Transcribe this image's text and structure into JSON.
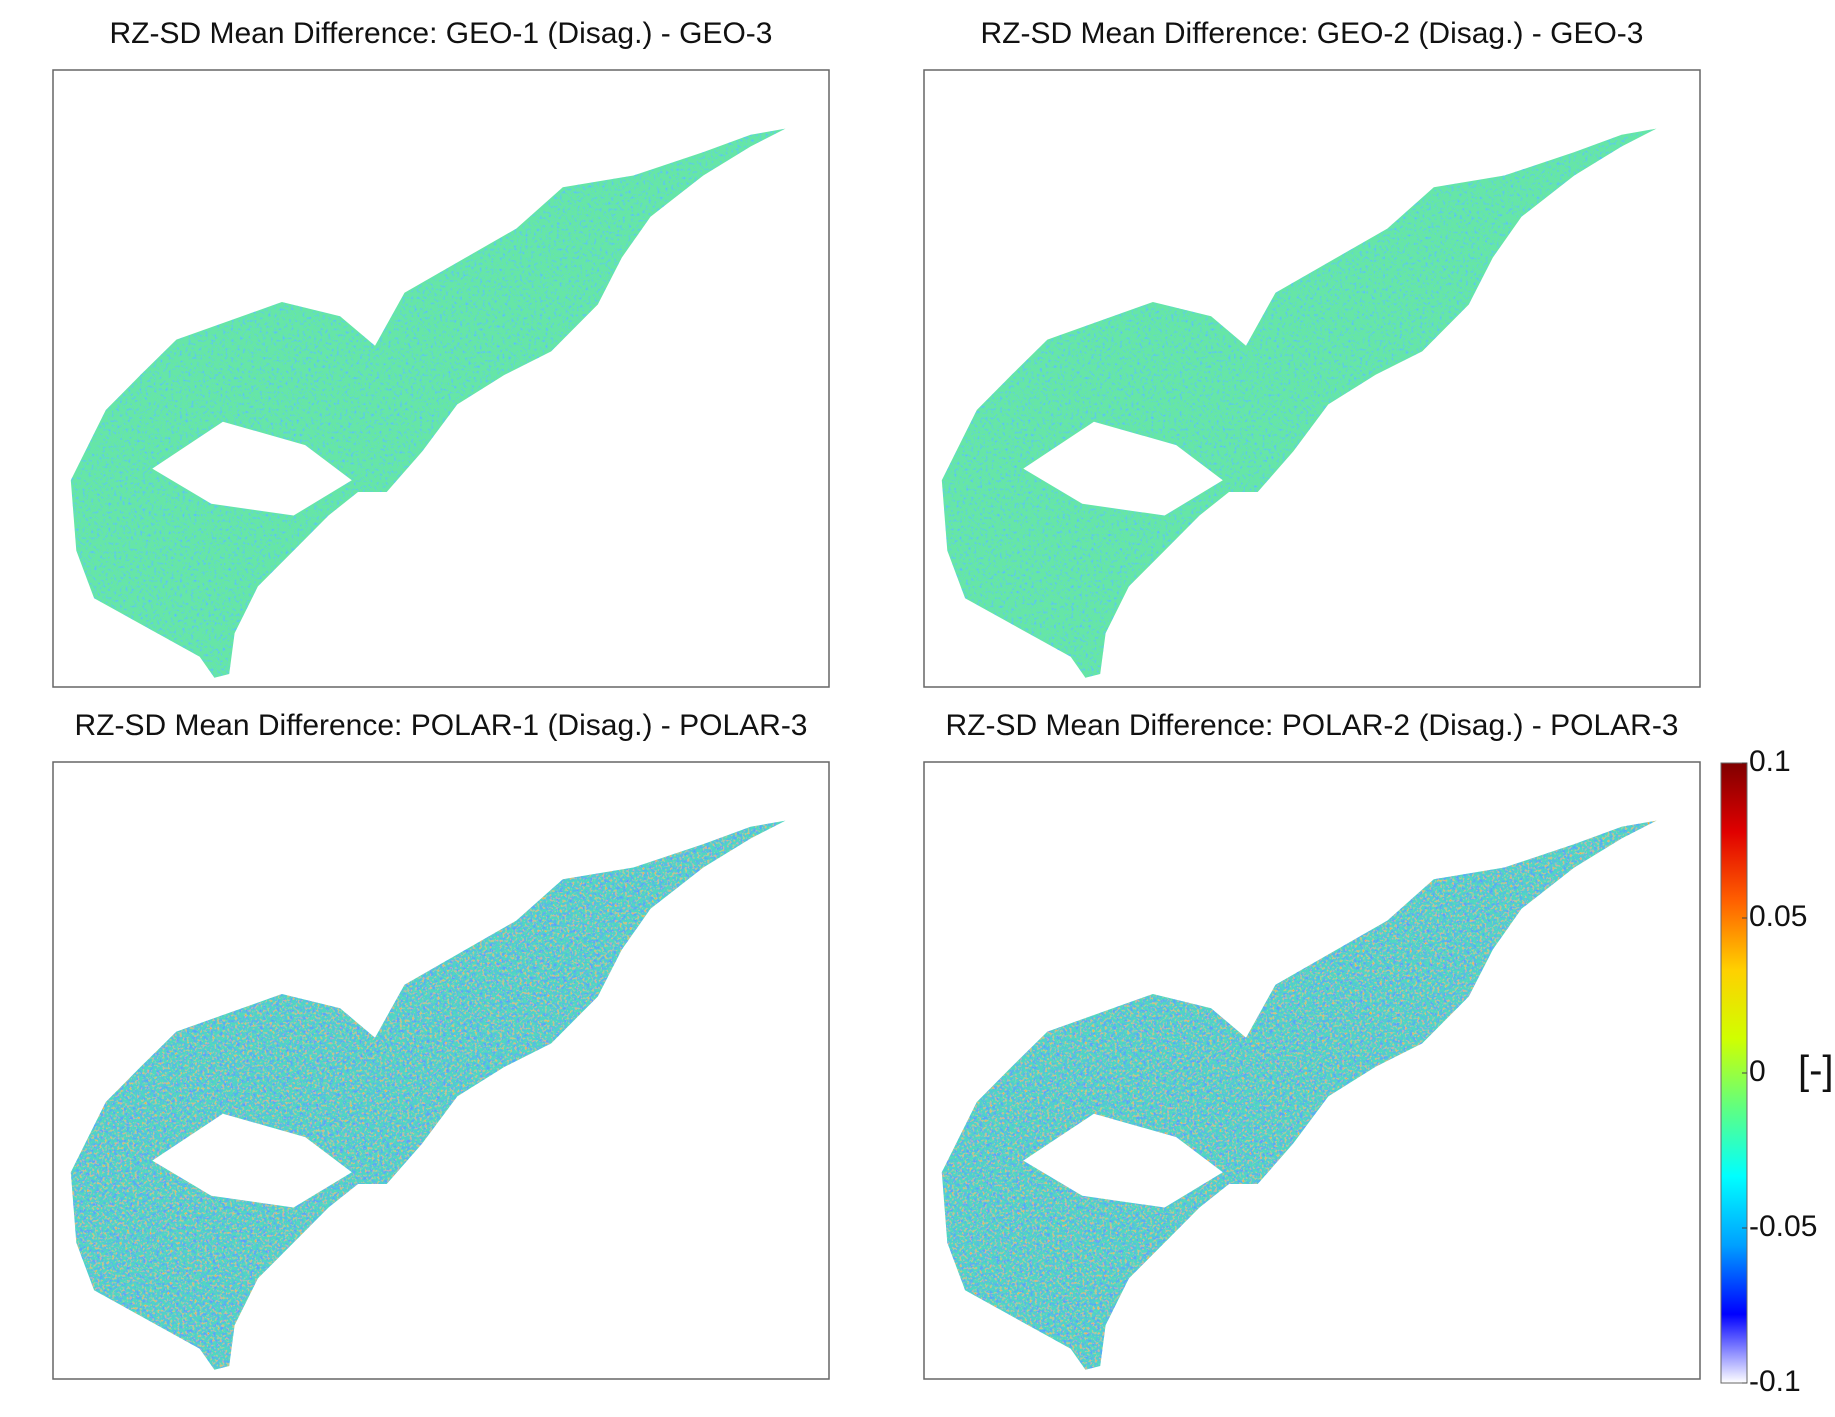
{
  "panels": [
    {
      "title": "RZ-SD Mean Difference: GEO-1 (Disag.) - GEO-3"
    },
    {
      "title": "RZ-SD Mean Difference: GEO-2 (Disag.) - GEO-3"
    },
    {
      "title": "RZ-SD Mean Difference: POLAR-1 (Disag.) - POLAR-3"
    },
    {
      "title": "RZ-SD Mean Difference: POLAR-2 (Disag.) - POLAR-3"
    }
  ],
  "colorbar": {
    "lim": [
      -0.1,
      0.1
    ],
    "ticks": [
      0.1,
      0.05,
      0,
      -0.05,
      -0.1
    ],
    "label": "[-]",
    "colormap": [
      "#ffffff",
      "#0000ff",
      "#00a0ff",
      "#00ffff",
      "#60ff80",
      "#d0ff00",
      "#ffd000",
      "#ff6000",
      "#e00000",
      "#800000"
    ]
  }
}
